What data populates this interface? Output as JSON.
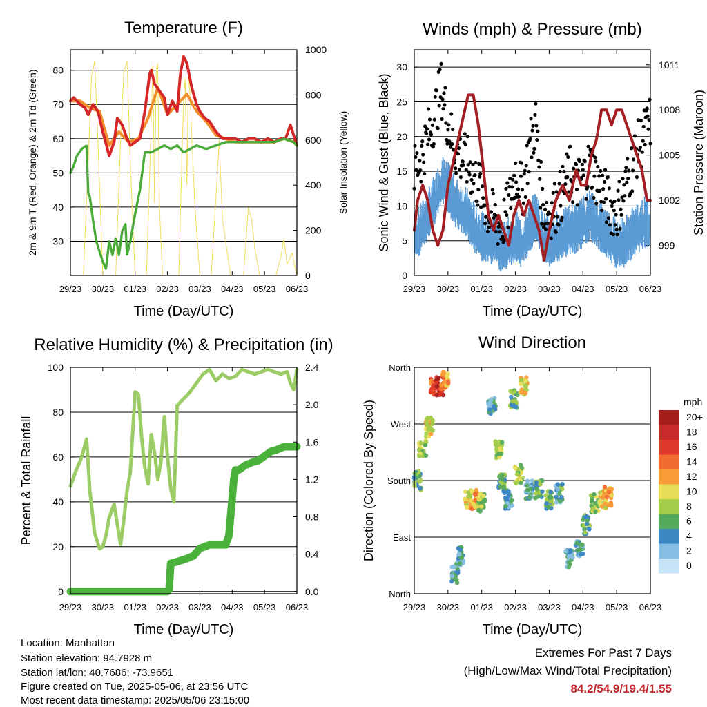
{
  "info": {
    "location": "Location: Manhattan",
    "elevation": "Station elevation: 94.7928 m",
    "latlon": "Station lat/lon: 40.7686; -73.9651",
    "created": "Figure created on Tue, 2025-05-06, at 23:56 UTC",
    "recent": "Most recent data timestamp: 2025/05/06 23:15:00"
  },
  "extremes": {
    "title": "Extremes For Past 7 Days",
    "subtitle": "(High/Low/Max Wind/Total Precipitation)",
    "values": "84.2/54.9/19.4/1.55",
    "value_color": "#c1272d"
  },
  "chart_data": [
    {
      "type": "line",
      "title": "Temperature (F)",
      "xlabel": "Time (Day/UTC)",
      "ylabel": "2m & 9m T (Red, Orange) & 2m Td (Green)",
      "y2label": "Solar Insolation (Yellow)",
      "x_ticks": [
        "29/23",
        "30/23",
        "01/23",
        "02/23",
        "03/23",
        "04/23",
        "05/23",
        "06/23"
      ],
      "xlim": [
        0,
        7
      ],
      "ylim": [
        20,
        86
      ],
      "y_ticks": [
        30,
        40,
        50,
        60,
        70,
        80
      ],
      "y2lim": [
        0,
        1000
      ],
      "y2_ticks": [
        0,
        200,
        400,
        600,
        800,
        1000
      ],
      "grid": "horizontal",
      "series": [
        {
          "color": "#d62728",
          "axis": "left",
          "x": [
            0,
            0.1,
            0.2,
            0.3,
            0.45,
            0.55,
            0.7,
            0.85,
            1.0,
            1.2,
            1.35,
            1.45,
            1.6,
            1.75,
            1.85,
            2.0,
            2.15,
            2.3,
            2.45,
            2.5,
            2.6,
            2.75,
            2.9,
            3.0,
            3.15,
            3.3,
            3.4,
            3.5,
            3.6,
            3.75,
            3.9,
            4.0,
            4.15,
            4.3,
            4.5,
            4.7,
            4.9,
            5.1,
            5.3,
            5.5,
            5.7,
            5.9,
            6.1,
            6.3,
            6.5,
            6.65,
            6.8,
            6.9,
            7.0
          ],
          "y": [
            71,
            72,
            71,
            70,
            69,
            67,
            70,
            68,
            62,
            55,
            59,
            66,
            64,
            60,
            58,
            59,
            60,
            68,
            79,
            80,
            76,
            74,
            72,
            67,
            71,
            68,
            79,
            84,
            82,
            75,
            70,
            68,
            66,
            65,
            62,
            60,
            60,
            60,
            59,
            60,
            60,
            59,
            60,
            59,
            60,
            60,
            64,
            61,
            58
          ]
        },
        {
          "color": "#f28e2b",
          "axis": "left",
          "x": [
            0,
            0.3,
            0.6,
            0.9,
            1.2,
            1.5,
            1.8,
            2.1,
            2.4,
            2.7,
            3.0,
            3.3,
            3.6,
            3.9,
            4.2,
            4.5,
            4.8,
            5.1,
            5.4,
            5.7,
            6.0,
            6.3,
            6.6,
            6.9,
            7.0
          ],
          "y": [
            71,
            71,
            69,
            68,
            58,
            62,
            59,
            60,
            66,
            75,
            67,
            70,
            73,
            68,
            65,
            61,
            60,
            59,
            59,
            59,
            59,
            59,
            60,
            59,
            58
          ]
        },
        {
          "color": "#4aaa3a",
          "axis": "left",
          "x": [
            0,
            0.1,
            0.2,
            0.35,
            0.5,
            0.55,
            0.6,
            0.7,
            0.8,
            0.9,
            1.0,
            1.1,
            1.2,
            1.3,
            1.4,
            1.5,
            1.6,
            1.7,
            1.75,
            1.85,
            2.0,
            2.15,
            2.3,
            2.5,
            2.7,
            2.9,
            3.1,
            3.3,
            3.5,
            3.7,
            3.9,
            4.2,
            4.5,
            4.8,
            5.1,
            5.4,
            5.7,
            6.0,
            6.3,
            6.6,
            6.9,
            7.0
          ],
          "y": [
            50,
            52,
            55,
            57,
            58,
            44,
            43,
            36,
            30,
            27,
            24,
            22,
            30,
            26,
            31,
            26,
            33,
            35,
            26,
            30,
            38,
            45,
            56,
            56,
            57,
            58,
            57,
            58,
            56,
            57,
            58,
            57,
            58,
            59,
            59,
            59,
            59,
            59,
            59,
            60,
            59,
            58
          ]
        },
        {
          "color": "#f2dc5d",
          "axis": "right",
          "x": [
            0.4,
            0.55,
            0.65,
            0.75,
            0.85,
            1.0,
            1.4,
            1.55,
            1.65,
            1.75,
            1.85,
            2.0,
            2.35,
            2.45,
            2.5,
            2.55,
            2.6,
            2.65,
            2.7,
            2.75,
            2.85,
            3.0,
            3.35,
            3.45,
            3.5,
            3.55,
            3.6,
            3.65,
            3.7,
            3.85,
            4.0,
            4.35,
            4.5,
            4.6,
            4.7,
            4.8,
            4.95,
            5.35,
            5.5,
            5.6,
            5.7,
            5.85,
            6.0,
            6.35,
            6.5,
            6.6,
            6.7,
            6.85,
            7.0
          ],
          "y": [
            0,
            500,
            880,
            950,
            600,
            0,
            0,
            600,
            900,
            950,
            500,
            0,
            0,
            450,
            700,
            950,
            320,
            900,
            940,
            300,
            0,
            0,
            0,
            550,
            780,
            870,
            400,
            910,
            780,
            300,
            0,
            0,
            350,
            600,
            250,
            150,
            0,
            0,
            300,
            250,
            120,
            0,
            0,
            0,
            80,
            160,
            50,
            100,
            0
          ]
        }
      ]
    },
    {
      "type": "line",
      "title": "Winds (mph) & Pressure (mb)",
      "xlabel": "Time (Day/UTC)",
      "ylabel": "Sonic Wind & Gust (Blue, Black)",
      "y2label": "Station Pressure (Maroon)",
      "x_ticks": [
        "29/23",
        "30/23",
        "01/23",
        "02/23",
        "03/23",
        "04/23",
        "05/23",
        "06/23"
      ],
      "xlim": [
        0,
        7
      ],
      "ylim": [
        0,
        32.5
      ],
      "y_ticks": [
        0,
        5,
        10,
        15,
        20,
        25,
        30
      ],
      "y2lim": [
        997,
        1012
      ],
      "y2_ticks": [
        999,
        1002,
        1005,
        1008,
        1011
      ],
      "grid": "horizontal",
      "series": [
        {
          "color": "#5b9bd5",
          "axis": "left",
          "values_from": "wind",
          "x": [
            0,
            0.2,
            0.4,
            0.6,
            0.8,
            1.0,
            1.2,
            1.4,
            1.6,
            1.8,
            2.0,
            2.2,
            2.4,
            2.6,
            2.8,
            3.0,
            3.2,
            3.4,
            3.6,
            3.8,
            4.0,
            4.2,
            4.4,
            4.6,
            4.8,
            5.0,
            5.2,
            5.4,
            5.6,
            5.8,
            6.0,
            6.2,
            6.4,
            6.6,
            6.8,
            7.0
          ],
          "y": [
            6,
            7,
            9,
            11,
            14,
            13,
            11,
            10,
            9,
            7,
            6,
            5,
            6,
            4,
            5,
            6,
            5,
            7,
            9,
            6,
            5,
            6,
            6,
            7,
            7,
            8,
            9,
            8,
            7,
            6,
            5,
            5,
            6,
            7,
            8,
            8
          ]
        },
        {
          "color": "#000000",
          "axis": "left",
          "values_from": "gust",
          "x": [
            0,
            0.2,
            0.4,
            0.6,
            0.8,
            1.0,
            1.2,
            1.4,
            1.6,
            1.8,
            2.0,
            2.2,
            2.4,
            2.6,
            2.8,
            3.0,
            3.2,
            3.4,
            3.6,
            3.8,
            4.0,
            4.2,
            4.4,
            4.6,
            4.8,
            5.0,
            5.2,
            5.4,
            5.6,
            5.8,
            6.0,
            6.2,
            6.4,
            6.6,
            6.8,
            7.0
          ],
          "y": [
            15,
            17,
            20,
            23,
            27,
            22,
            18,
            17,
            16,
            14,
            12,
            9,
            8,
            7,
            10,
            15,
            12,
            18,
            22,
            10,
            9,
            10,
            12,
            15,
            13,
            14,
            16,
            14,
            12,
            10,
            9,
            12,
            15,
            18,
            20,
            22
          ]
        },
        {
          "color": "#a31f24",
          "axis": "right",
          "x": [
            0,
            0.1,
            0.25,
            0.4,
            0.55,
            0.7,
            0.85,
            1.0,
            1.2,
            1.4,
            1.5,
            1.6,
            1.75,
            1.9,
            2.05,
            2.2,
            2.35,
            2.5,
            2.65,
            2.8,
            2.95,
            3.1,
            3.25,
            3.4,
            3.55,
            3.7,
            3.85,
            4.0,
            4.2,
            4.4,
            4.6,
            4.8,
            4.95,
            5.1,
            5.25,
            5.4,
            5.55,
            5.7,
            5.85,
            6.0,
            6.15,
            6.3,
            6.45,
            6.6,
            6.75,
            6.9,
            7.0
          ],
          "y": [
            1000,
            1002,
            1003,
            1002,
            1000,
            999,
            1000,
            1003,
            1005,
            1007,
            1008,
            1009,
            1009,
            1007,
            1004,
            1001,
            1000,
            1001,
            1000,
            999,
            1001,
            1002,
            1001,
            1002,
            1001,
            1000,
            998,
            1000,
            1002,
            1003,
            1002,
            1004,
            1003,
            1003,
            1005,
            1006,
            1008,
            1008,
            1007,
            1008,
            1008,
            1007,
            1006,
            1005,
            1004,
            1002,
            1002
          ]
        }
      ]
    },
    {
      "type": "line",
      "title": "Relative Humidity (%) & Precipitation (in)",
      "xlabel": "Time (Day/UTC)",
      "ylabel": "Percent & Total Rainfall",
      "x_ticks": [
        "29/23",
        "30/23",
        "01/23",
        "02/23",
        "03/23",
        "04/23",
        "05/23",
        "06/23"
      ],
      "xlim": [
        0,
        7
      ],
      "ylim": [
        -1,
        100
      ],
      "y_ticks": [
        0,
        20,
        40,
        60,
        80,
        100
      ],
      "y2lim": [
        -0.024,
        2.4
      ],
      "y2_ticks": [
        0.0,
        0.4,
        0.8,
        1.2,
        1.6,
        2.0,
        2.4
      ],
      "grid": "horizontal",
      "series": [
        {
          "color": "#9ccc65",
          "axis": "left",
          "x": [
            0,
            0.15,
            0.35,
            0.5,
            0.6,
            0.75,
            0.9,
            1.0,
            1.1,
            1.2,
            1.35,
            1.45,
            1.55,
            1.65,
            1.75,
            1.85,
            2.0,
            2.1,
            2.2,
            2.3,
            2.4,
            2.5,
            2.6,
            2.7,
            2.8,
            2.9,
            3.0,
            3.1,
            3.2,
            3.3,
            3.5,
            3.7,
            3.9,
            4.1,
            4.3,
            4.5,
            4.7,
            4.9,
            5.1,
            5.3,
            5.5,
            5.7,
            5.9,
            6.1,
            6.3,
            6.5,
            6.7,
            6.8,
            6.9,
            7.0
          ],
          "y": [
            47,
            53,
            60,
            68,
            45,
            26,
            19,
            20,
            25,
            33,
            39,
            30,
            21,
            32,
            45,
            53,
            89,
            88,
            69,
            55,
            48,
            70,
            62,
            50,
            58,
            78,
            60,
            46,
            40,
            83,
            86,
            89,
            93,
            97,
            99,
            94,
            97,
            95,
            96,
            99,
            98,
            97,
            98,
            99,
            98,
            97,
            98,
            93,
            90,
            99
          ]
        },
        {
          "color": "#4ab23a",
          "axis": "right",
          "x": [
            0,
            1.0,
            2.0,
            3.0,
            3.05,
            3.1,
            3.5,
            3.8,
            4.0,
            4.3,
            4.6,
            4.8,
            4.9,
            4.95,
            5.0,
            5.05,
            5.1,
            5.2,
            5.4,
            5.6,
            5.8,
            6.0,
            6.2,
            6.4,
            6.6,
            7.0
          ],
          "y": [
            0,
            0,
            0,
            0,
            0.02,
            0.3,
            0.34,
            0.38,
            0.46,
            0.5,
            0.5,
            0.5,
            0.6,
            0.8,
            1.0,
            1.2,
            1.3,
            1.3,
            1.35,
            1.38,
            1.4,
            1.45,
            1.5,
            1.52,
            1.55,
            1.55
          ]
        }
      ]
    },
    {
      "type": "scatter",
      "title": "Wind Direction",
      "xlabel": "Time (Day/UTC)",
      "ylabel": "Direction (Colored By Speed)",
      "x_ticks": [
        "29/23",
        "30/23",
        "01/23",
        "02/23",
        "03/23",
        "04/23",
        "05/23",
        "06/23"
      ],
      "xlim": [
        0,
        7
      ],
      "y_tick_labels": [
        "North",
        "East",
        "South",
        "West",
        "North"
      ],
      "ylim": [
        0,
        360
      ],
      "grid": "horizontal",
      "colorbar": {
        "title": "mph",
        "labels": [
          "20+",
          "18",
          "16",
          "14",
          "12",
          "10",
          "8",
          "6",
          "4",
          "2",
          "0"
        ],
        "colors": [
          "#a51c1d",
          "#c92a2a",
          "#e0392b",
          "#f26b31",
          "#f89c3a",
          "#e8dd57",
          "#a3cc4a",
          "#56aa5c",
          "#3d86c4",
          "#86bfe3",
          "#c6e4f7"
        ]
      },
      "clusters": [
        {
          "x": 0.1,
          "dir": 180,
          "speed": 6
        },
        {
          "x": 0.25,
          "dir": 230,
          "speed": 8
        },
        {
          "x": 0.45,
          "dir": 265,
          "speed": 10
        },
        {
          "x": 0.6,
          "dir": 330,
          "speed": 14
        },
        {
          "x": 0.75,
          "dir": 330,
          "speed": 19
        },
        {
          "x": 0.9,
          "dir": 340,
          "speed": 12
        },
        {
          "x": 1.2,
          "dir": 30,
          "speed": 4
        },
        {
          "x": 1.35,
          "dir": 60,
          "speed": 4
        },
        {
          "x": 1.6,
          "dir": 150,
          "speed": 10
        },
        {
          "x": 1.8,
          "dir": 150,
          "speed": 12
        },
        {
          "x": 2.0,
          "dir": 145,
          "speed": 8
        },
        {
          "x": 2.3,
          "dir": 300,
          "speed": 4
        },
        {
          "x": 2.5,
          "dir": 230,
          "speed": 8
        },
        {
          "x": 2.6,
          "dir": 175,
          "speed": 6
        },
        {
          "x": 2.8,
          "dir": 150,
          "speed": 4
        },
        {
          "x": 2.95,
          "dir": 310,
          "speed": 6
        },
        {
          "x": 3.1,
          "dir": 190,
          "speed": 8
        },
        {
          "x": 3.25,
          "dir": 330,
          "speed": 10
        },
        {
          "x": 3.4,
          "dir": 165,
          "speed": 4
        },
        {
          "x": 3.7,
          "dir": 165,
          "speed": 6
        },
        {
          "x": 4.0,
          "dir": 150,
          "speed": 6
        },
        {
          "x": 4.3,
          "dir": 160,
          "speed": 5
        },
        {
          "x": 4.6,
          "dir": 55,
          "speed": 4
        },
        {
          "x": 4.9,
          "dir": 70,
          "speed": 4
        },
        {
          "x": 5.1,
          "dir": 110,
          "speed": 6
        },
        {
          "x": 5.35,
          "dir": 145,
          "speed": 8
        },
        {
          "x": 5.6,
          "dir": 150,
          "speed": 10
        },
        {
          "x": 5.75,
          "dir": 155,
          "speed": 12
        }
      ]
    }
  ]
}
